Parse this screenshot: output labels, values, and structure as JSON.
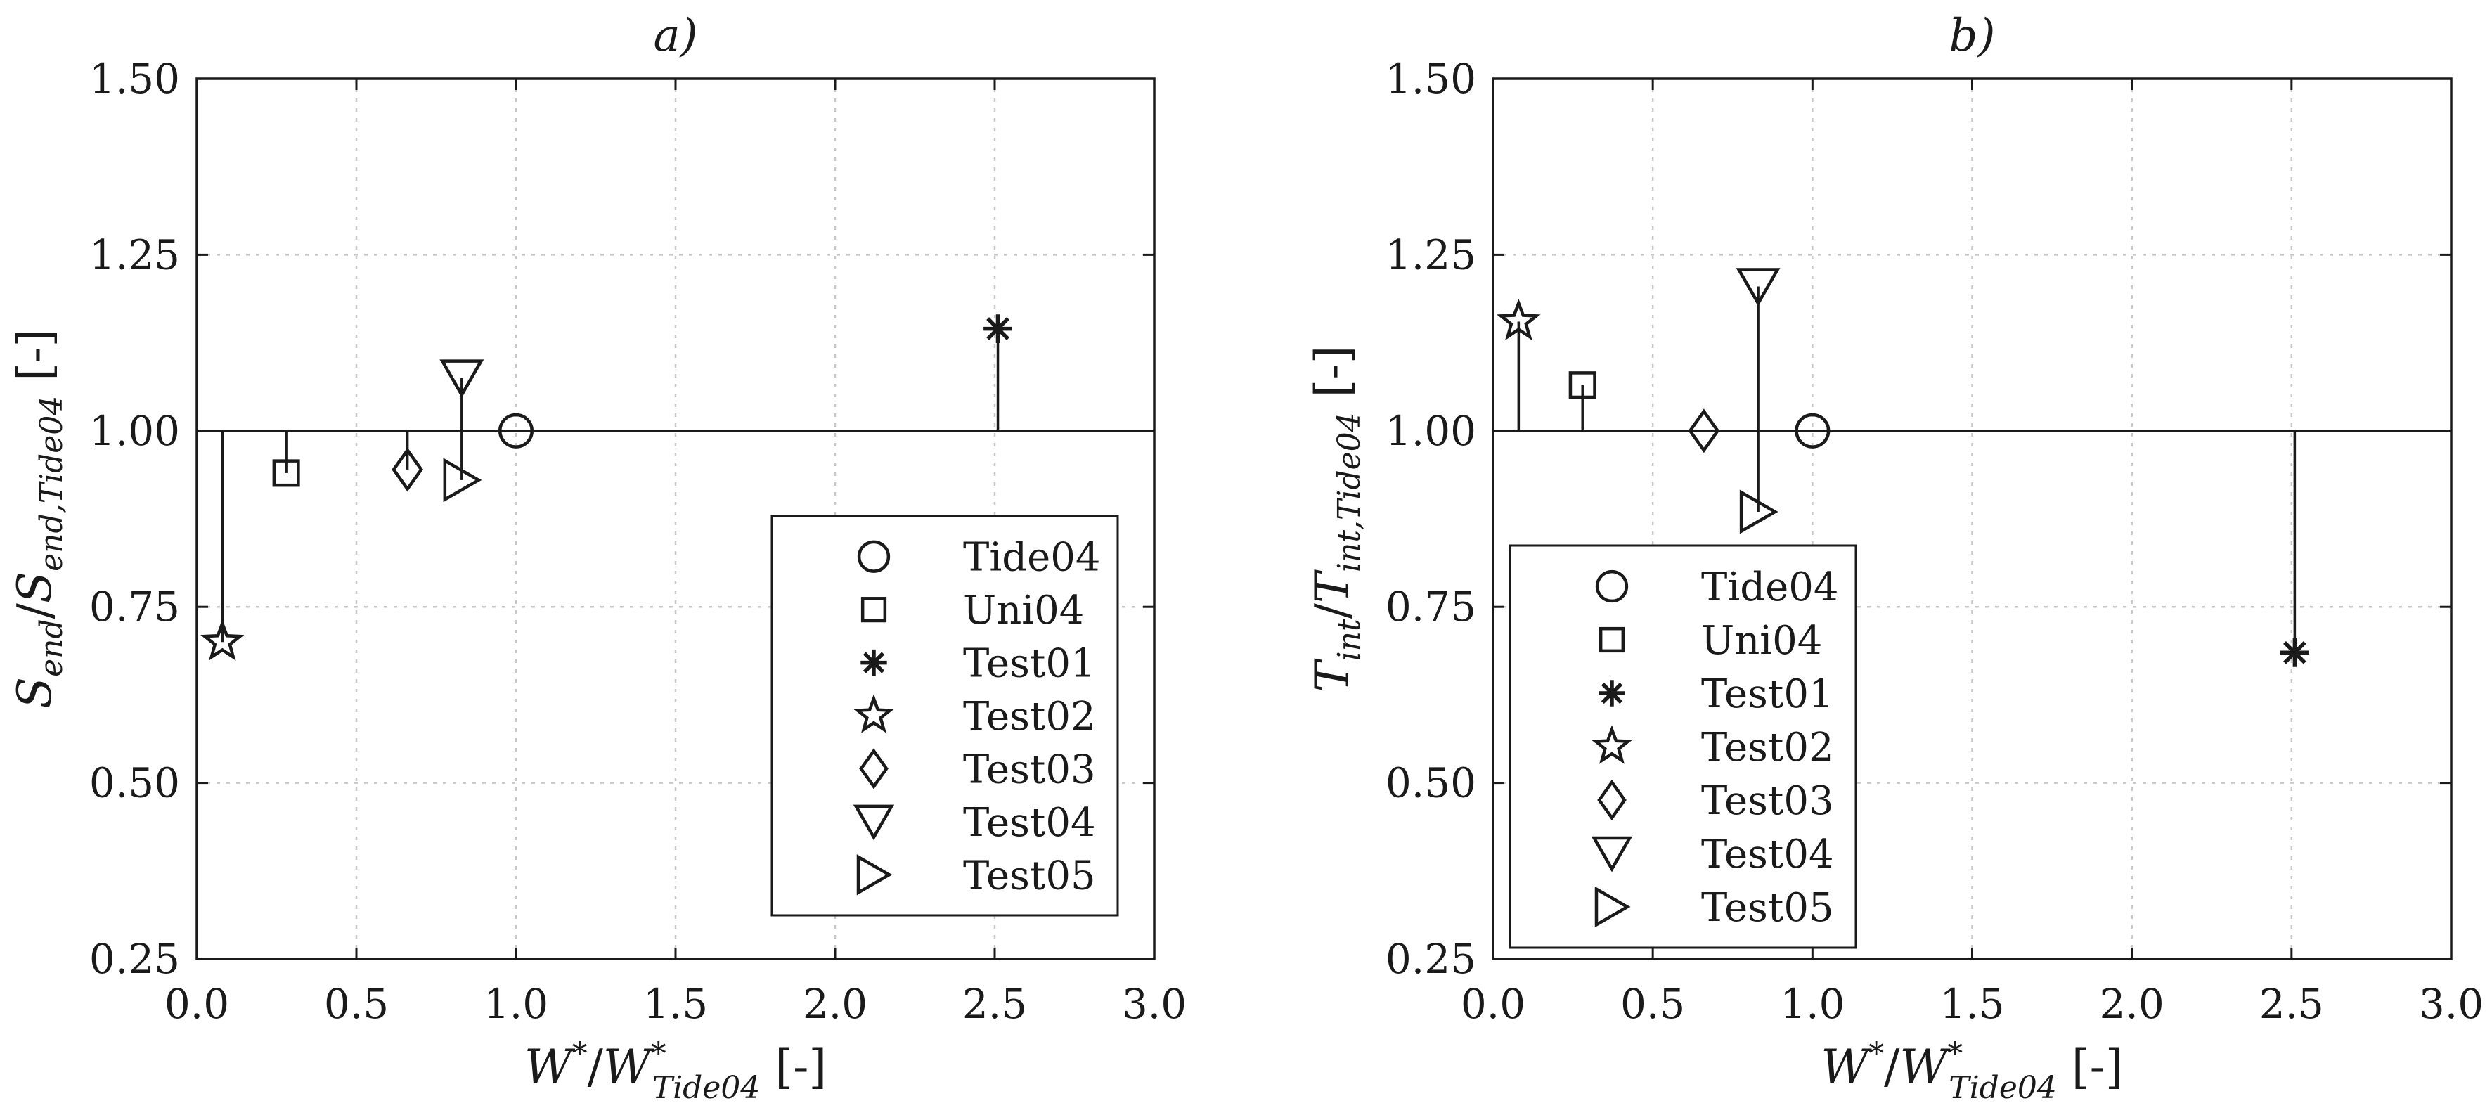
{
  "chart_data": [
    {
      "type": "scatter",
      "title": "a)",
      "xlabel": "W*/W*_Tide04 [-]",
      "ylabel": "S_end/S_end,Tide04 [-]",
      "xlabel_parts": {
        "main": "W",
        "sup": "*",
        "sep": "/",
        "main2": "W",
        "sup2": "*",
        "sub2": "Tide04",
        "unit": "[-]"
      },
      "ylabel_parts": {
        "main": "S",
        "sub": "end",
        "sep": "/",
        "main2": "S",
        "sub2": "end,Tide04",
        "unit": "[-]"
      },
      "xlim": [
        0,
        3
      ],
      "ylim": [
        0.25,
        1.5
      ],
      "xticks": [
        "0.0",
        "0.5",
        "1.0",
        "1.5",
        "2.0",
        "2.5",
        "3.0"
      ],
      "yticks": [
        "0.25",
        "0.50",
        "0.75",
        "1.00",
        "1.25",
        "1.50"
      ],
      "grid": true,
      "reference_line": 1.0,
      "legend_position": "lower-right",
      "series": [
        {
          "name": "Tide04",
          "marker": "circle",
          "x": 1.0,
          "y": 1.0
        },
        {
          "name": "Uni04",
          "marker": "square",
          "x": 0.28,
          "y": 0.94
        },
        {
          "name": "Test01",
          "marker": "asterisk",
          "x": 2.51,
          "y": 1.145
        },
        {
          "name": "Test02",
          "marker": "star",
          "x": 0.08,
          "y": 0.7
        },
        {
          "name": "Test03",
          "marker": "diamond",
          "x": 0.66,
          "y": 0.945
        },
        {
          "name": "Test04",
          "marker": "triangle-down",
          "x": 0.83,
          "y": 1.075
        },
        {
          "name": "Test05",
          "marker": "triangle-right",
          "x": 0.83,
          "y": 0.93
        }
      ]
    },
    {
      "type": "scatter",
      "title": "b)",
      "xlabel": "W*/W*_Tide04 [-]",
      "ylabel": "T_int/T_int,Tide04 [-]",
      "xlabel_parts": {
        "main": "W",
        "sup": "*",
        "sep": "/",
        "main2": "W",
        "sup2": "*",
        "sub2": "Tide04",
        "unit": "[-]"
      },
      "ylabel_parts": {
        "main": "T",
        "sub": "int",
        "sep": "/",
        "main2": "T",
        "sub2": "int,Tide04",
        "unit": "[-]"
      },
      "xlim": [
        0,
        3
      ],
      "ylim": [
        0.25,
        1.5
      ],
      "xticks": [
        "0.0",
        "0.5",
        "1.0",
        "1.5",
        "2.0",
        "2.5",
        "3.0"
      ],
      "yticks": [
        "0.25",
        "0.50",
        "0.75",
        "1.00",
        "1.25",
        "1.50"
      ],
      "grid": true,
      "reference_line": 1.0,
      "legend_position": "lower-left",
      "series": [
        {
          "name": "Tide04",
          "marker": "circle",
          "x": 1.0,
          "y": 1.0
        },
        {
          "name": "Uni04",
          "marker": "square",
          "x": 0.28,
          "y": 1.065
        },
        {
          "name": "Test01",
          "marker": "asterisk",
          "x": 2.51,
          "y": 0.685
        },
        {
          "name": "Test02",
          "marker": "star",
          "x": 0.08,
          "y": 1.155
        },
        {
          "name": "Test03",
          "marker": "diamond",
          "x": 0.66,
          "y": 1.0
        },
        {
          "name": "Test04",
          "marker": "triangle-down",
          "x": 0.83,
          "y": 1.205
        },
        {
          "name": "Test05",
          "marker": "triangle-right",
          "x": 0.83,
          "y": 0.885
        }
      ]
    }
  ]
}
